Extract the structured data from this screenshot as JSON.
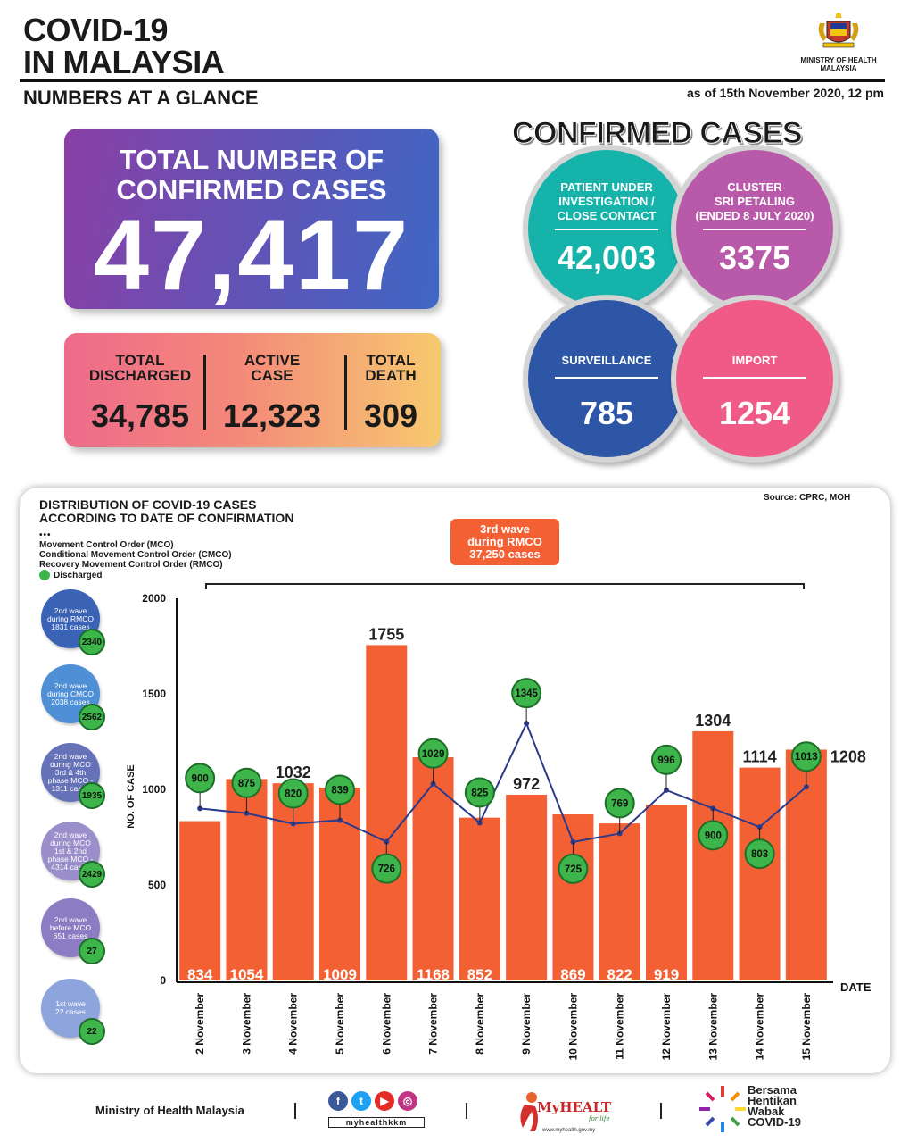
{
  "header": {
    "title": "COVID-19\nIN MALAYSIA",
    "subtitle": "NUMBERS AT A GLANCE",
    "as_of": "as of 15th November 2020, 12 pm",
    "ministry": "MINISTRY OF HEALTH\nMALAYSIA"
  },
  "total": {
    "label": "TOTAL NUMBER OF\nCONFIRMED CASES",
    "value": "47,417"
  },
  "stats": {
    "discharged": {
      "label": "TOTAL\nDISCHARGED",
      "value": "34,785"
    },
    "active": {
      "label": "ACTIVE\nCASE",
      "value": "12,323"
    },
    "death": {
      "label": "TOTAL\nDEATH",
      "value": "309"
    }
  },
  "confirmed": {
    "title": "CONFIRMED CASES",
    "pui": {
      "label": "PATIENT UNDER\nINVESTIGATION /\nCLOSE CONTACT",
      "value": "42,003",
      "color": "#15b3aa"
    },
    "cluster": {
      "label": "CLUSTER\nSRI PETALING\n(ENDED 8 JULY 2020)",
      "value": "3375",
      "color": "#b85aa9"
    },
    "surveillance": {
      "label": "SURVEILLANCE",
      "value": "785",
      "color": "#2d56a6"
    },
    "import": {
      "label": "IMPORT",
      "value": "1254",
      "color": "#ef5b86"
    }
  },
  "chart_header": {
    "title": "DISTRIBUTION OF COVID-19 CASES\nACCORDING TO DATE OF CONFIRMATION",
    "source": "Source: CPRC, MOH",
    "legend_dots": "•••",
    "legend_mco": "Movement Control Order (MCO)",
    "legend_cmco": "Conditional Movement Control Order (CMCO)",
    "legend_rmco": "Recovery Movement Control Order (RMCO)",
    "legend_discharged": "Discharged",
    "wave3": "3rd wave\nduring RMCO\n37,250 cases"
  },
  "waves": [
    {
      "label": "2nd wave\nduring RMCO\n1831 cases",
      "discharged": "2340",
      "color": "#3a62b5"
    },
    {
      "label": "2nd wave\nduring CMCO\n2038 cases",
      "discharged": "2562",
      "color": "#4e8fd6"
    },
    {
      "label": "2nd wave\nduring MCO\n3rd & 4th\nphase MCO -\n1311 cases",
      "discharged": "1935",
      "color": "#6672b8"
    },
    {
      "label": "2nd wave\nduring MCO\n1st & 2nd\nphase MCO -\n4314 cases",
      "discharged": "2429",
      "color": "#9b8fcb"
    },
    {
      "label": "2nd wave\nbefore MCO\n651 cases",
      "discharged": "27",
      "color": "#8c7cc3"
    },
    {
      "label": "1st wave\n22 cases",
      "discharged": "22",
      "color": "#8da4dc"
    }
  ],
  "chart_data": {
    "type": "bar",
    "categories": [
      "2 November",
      "3 November",
      "4 November",
      "5 November",
      "6 November",
      "7 November",
      "8 November",
      "9 November",
      "10 November",
      "11 November",
      "12 November",
      "13 November",
      "14 November",
      "15 November"
    ],
    "series": [
      {
        "type": "bar",
        "values": [
          834,
          1054,
          1032,
          1009,
          1755,
          1168,
          852,
          972,
          869,
          822,
          919,
          1304,
          1114,
          1208
        ],
        "color": "#f26034"
      },
      {
        "name": "Discharged",
        "type": "line",
        "values": [
          900,
          875,
          820,
          839,
          726,
          1029,
          825,
          1345,
          725,
          769,
          996,
          900,
          803,
          1013
        ],
        "color": "#2b3a8a"
      }
    ],
    "ylabel": "NO. OF CASE",
    "xlabel": "DATE",
    "ylim": [
      0,
      2000
    ],
    "yticks": [
      0,
      500,
      1000,
      1500,
      2000
    ],
    "label_positions": [
      "inside",
      "inside",
      "top",
      "inside",
      "top",
      "inside",
      "inside",
      "top",
      "inside",
      "inside",
      "inside",
      "top",
      "top",
      "right"
    ]
  },
  "footer": {
    "ministry": "Ministry of Health Malaysia",
    "social_handle": "myhealthkkm",
    "myhealth": "MyHEALTH",
    "myhealth_tag": "for life",
    "myhealth_url": "www.myhealth.gov.my",
    "bersama": "Bersama\nHentikan\nWabak\nCOVID-19"
  }
}
